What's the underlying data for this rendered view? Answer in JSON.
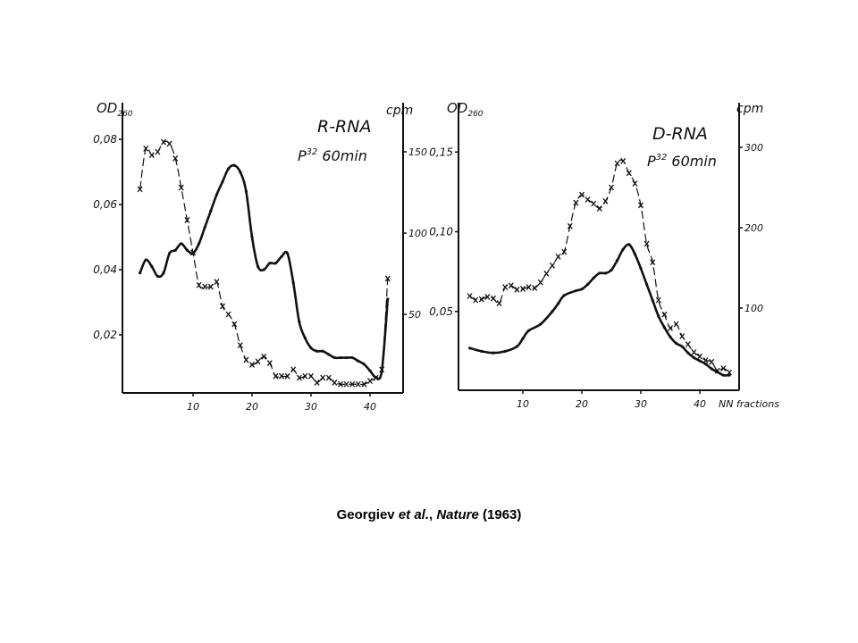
{
  "caption": {
    "authors": "Georgiev",
    "etal": "et al.",
    "sep": ",",
    "journal": "Nature",
    "year": "(1963)"
  },
  "chart_data": [
    {
      "type": "line",
      "title": "R-RNA",
      "subtitle_prefix": "P",
      "subtitle_sup": "32",
      "subtitle_rest": "60min",
      "ylabel": "OD",
      "ylabel_sub": "260",
      "y2label": "cpm",
      "xlabel": "",
      "xlim": [
        0,
        45
      ],
      "ylim": [
        0,
        0.09
      ],
      "y2lim": [
        0,
        165
      ],
      "xticks": [
        10,
        20,
        30,
        40
      ],
      "yticks": [
        "0.02",
        "0.04",
        "0.06",
        "0.08"
      ],
      "y2ticks": [
        "50",
        "100",
        "150"
      ],
      "grid": false,
      "series": [
        {
          "name": "OD260",
          "axis": "left",
          "style": "solid-dots",
          "x": [
            1,
            2,
            3,
            4,
            5,
            6,
            7,
            8,
            9,
            10,
            11,
            12,
            13,
            14,
            15,
            16,
            17,
            18,
            19,
            20,
            21,
            22,
            23,
            24,
            25,
            26,
            27,
            28,
            29,
            30,
            31,
            32,
            33,
            34,
            35,
            36,
            37,
            38,
            39,
            40,
            41,
            42,
            43
          ],
          "y": [
            0.039,
            0.043,
            0.041,
            0.038,
            0.039,
            0.045,
            0.046,
            0.048,
            0.046,
            0.045,
            0.048,
            0.053,
            0.058,
            0.063,
            0.067,
            0.071,
            0.072,
            0.07,
            0.064,
            0.05,
            0.041,
            0.04,
            0.042,
            0.042,
            0.044,
            0.045,
            0.036,
            0.024,
            0.019,
            0.016,
            0.015,
            0.015,
            0.014,
            0.013,
            0.013,
            0.013,
            0.013,
            0.012,
            0.011,
            0.009,
            0.007,
            0.009,
            0.031
          ]
        },
        {
          "name": "cpm",
          "axis": "right",
          "style": "dashed-x",
          "x": [
            1,
            2,
            3,
            4,
            5,
            6,
            7,
            8,
            9,
            10,
            11,
            12,
            13,
            14,
            15,
            16,
            17,
            18,
            19,
            20,
            21,
            22,
            23,
            24,
            25,
            26,
            27,
            28,
            29,
            30,
            31,
            32,
            33,
            34,
            35,
            36,
            37,
            38,
            39,
            40,
            41,
            42,
            43
          ],
          "y": [
            127,
            152,
            148,
            150,
            156,
            155,
            146,
            128,
            108,
            88,
            68,
            67,
            67,
            70,
            55,
            50,
            44,
            31,
            22,
            19,
            21,
            24,
            20,
            12,
            12,
            12,
            16,
            11,
            12,
            12,
            8,
            11,
            11,
            8,
            7,
            7,
            7,
            7,
            7,
            9,
            11,
            16,
            72
          ]
        }
      ]
    },
    {
      "type": "line",
      "title": "D-RNA",
      "subtitle_prefix": "P",
      "subtitle_sup": "32",
      "subtitle_rest": "60min",
      "ylabel": "OD",
      "ylabel_sub": "260",
      "y2label": "cpm",
      "xlabel": "NN fractions",
      "xlim": [
        0,
        46
      ],
      "ylim": [
        0,
        0.18
      ],
      "y2lim": [
        0,
        345
      ],
      "xticks": [
        10,
        20,
        30,
        40
      ],
      "yticks": [
        "0.05",
        "0.10",
        "0.15"
      ],
      "y2ticks": [
        "100",
        "200",
        "300"
      ],
      "grid": false,
      "series": [
        {
          "name": "OD260",
          "axis": "left",
          "style": "solid-dots",
          "x": [
            1,
            3,
            5,
            7,
            9,
            10,
            11,
            13,
            15,
            16,
            17,
            19,
            20,
            21,
            22,
            23,
            24,
            25,
            26,
            27,
            28,
            29,
            30,
            31,
            32,
            33,
            34,
            35,
            36,
            37,
            38,
            39,
            40,
            41,
            42,
            43,
            44,
            45
          ],
          "y": [
            0.027,
            0.025,
            0.024,
            0.025,
            0.028,
            0.033,
            0.038,
            0.042,
            0.05,
            0.055,
            0.06,
            0.063,
            0.064,
            0.067,
            0.071,
            0.074,
            0.074,
            0.076,
            0.082,
            0.089,
            0.092,
            0.086,
            0.077,
            0.067,
            0.057,
            0.047,
            0.04,
            0.034,
            0.03,
            0.028,
            0.024,
            0.021,
            0.019,
            0.017,
            0.014,
            0.012,
            0.01,
            0.01
          ]
        },
        {
          "name": "cpm",
          "axis": "right",
          "style": "dashed-x",
          "x": [
            1,
            2,
            3,
            4,
            5,
            6,
            7,
            8,
            9,
            10,
            11,
            12,
            13,
            14,
            15,
            16,
            17,
            18,
            19,
            20,
            21,
            22,
            23,
            24,
            25,
            26,
            27,
            28,
            29,
            30,
            31,
            32,
            33,
            34,
            35,
            36,
            37,
            38,
            39,
            40,
            41,
            42,
            43,
            44,
            45
          ],
          "y": [
            115,
            110,
            111,
            114,
            112,
            106,
            126,
            128,
            123,
            124,
            126,
            125,
            132,
            143,
            153,
            164,
            170,
            202,
            231,
            241,
            235,
            230,
            224,
            233,
            250,
            280,
            283,
            268,
            255,
            228,
            180,
            157,
            110,
            92,
            75,
            80,
            65,
            55,
            45,
            40,
            35,
            33,
            22,
            25,
            20
          ]
        }
      ]
    }
  ]
}
